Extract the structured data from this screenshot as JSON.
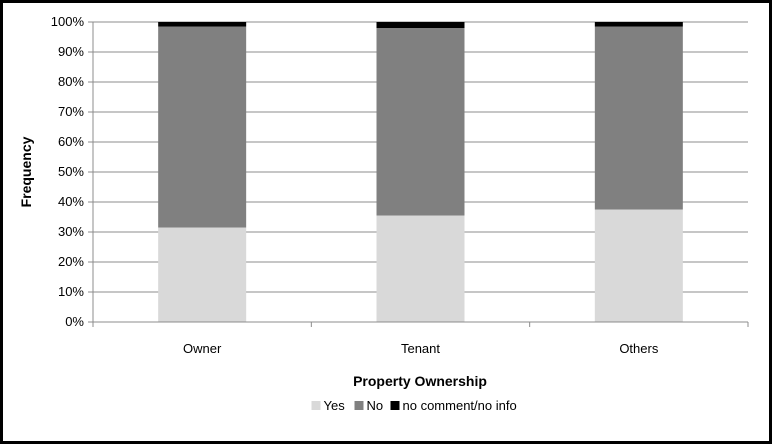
{
  "chart_data": {
    "type": "bar",
    "stacked": true,
    "percent_stacked": true,
    "title": "",
    "xlabel": "Property Ownership",
    "ylabel": "Frequency",
    "categories": [
      "Owner",
      "Tenant",
      "Others"
    ],
    "yticks": [
      "0%",
      "10%",
      "20%",
      "30%",
      "40%",
      "50%",
      "60%",
      "70%",
      "80%",
      "90%",
      "100%"
    ],
    "ylim": [
      0,
      100
    ],
    "grid": true,
    "legend_position": "bottom",
    "series": [
      {
        "name": "Yes",
        "color": "#d9d9d9",
        "values": [
          31.5,
          35.5,
          37.5
        ]
      },
      {
        "name": "No",
        "color": "#808080",
        "values": [
          67.0,
          62.5,
          61.0
        ]
      },
      {
        "name": "no comment/no info",
        "color": "#000000",
        "values": [
          1.5,
          2.0,
          1.5
        ]
      }
    ]
  }
}
